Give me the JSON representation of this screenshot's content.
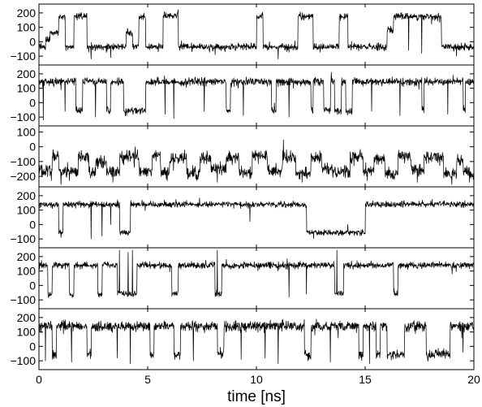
{
  "chart_data": {
    "type": "line",
    "layout": "six vertically stacked panels sharing one x axis, no grid, no legend",
    "xlabel": "time [ns]",
    "xlim": [
      0,
      20
    ],
    "x_ticks": [
      0,
      5,
      10,
      15,
      20
    ],
    "panels": [
      {
        "name": "",
        "ylim": [
          -150,
          250
        ],
        "y_ticks": [
          200,
          100,
          0,
          -100
        ],
        "noise": 16,
        "baseline": -35,
        "segments": [
          [
            0,
            0.3,
            -35
          ],
          [
            0.3,
            0.5,
            20
          ],
          [
            0.5,
            0.9,
            60
          ],
          [
            0.9,
            1.2,
            175
          ],
          [
            1.2,
            1.6,
            -35
          ],
          [
            1.6,
            2.2,
            175
          ],
          [
            2.2,
            4.0,
            -35
          ],
          [
            4.0,
            4.3,
            60
          ],
          [
            4.3,
            4.6,
            -35
          ],
          [
            4.6,
            4.9,
            175
          ],
          [
            4.9,
            5.7,
            -35
          ],
          [
            5.7,
            6.4,
            180
          ],
          [
            6.4,
            10.0,
            -35
          ],
          [
            10.0,
            10.3,
            175
          ],
          [
            10.3,
            11.9,
            -35
          ],
          [
            11.9,
            12.6,
            175
          ],
          [
            12.6,
            13.8,
            -35
          ],
          [
            13.8,
            14.2,
            175
          ],
          [
            14.2,
            16.0,
            -35
          ],
          [
            16.0,
            16.3,
            80
          ],
          [
            16.3,
            18.5,
            175
          ],
          [
            18.5,
            20.0,
            -35
          ]
        ],
        "spikes": [
          [
            2.4,
            -120
          ],
          [
            3.3,
            -110
          ],
          [
            8.1,
            -90
          ],
          [
            11.0,
            -120
          ],
          [
            17.0,
            -60
          ],
          [
            17.6,
            -80
          ],
          [
            19.2,
            -100
          ]
        ]
      },
      {
        "name": "",
        "ylim": [
          -150,
          250
        ],
        "y_ticks": [
          200,
          100,
          0,
          -100
        ],
        "noise": 18,
        "baseline": 145,
        "segments": [
          [
            0,
            1.7,
            145
          ],
          [
            1.7,
            2.0,
            -55
          ],
          [
            2.0,
            3.1,
            145
          ],
          [
            3.1,
            3.3,
            -55
          ],
          [
            3.3,
            3.9,
            145
          ],
          [
            3.9,
            4.9,
            -60
          ],
          [
            4.9,
            8.6,
            145
          ],
          [
            8.6,
            8.8,
            -55
          ],
          [
            8.8,
            10.7,
            145
          ],
          [
            10.7,
            10.9,
            -50
          ],
          [
            10.9,
            12.5,
            145
          ],
          [
            12.5,
            12.6,
            -50
          ],
          [
            12.6,
            13.1,
            145
          ],
          [
            13.1,
            13.4,
            -50
          ],
          [
            13.4,
            13.6,
            145
          ],
          [
            13.6,
            13.9,
            -60
          ],
          [
            13.9,
            14.1,
            145
          ],
          [
            14.1,
            14.4,
            -60
          ],
          [
            14.4,
            17.6,
            145
          ],
          [
            17.6,
            17.7,
            -50
          ],
          [
            17.7,
            19.5,
            145
          ],
          [
            19.5,
            19.6,
            -50
          ],
          [
            19.6,
            20.0,
            145
          ]
        ],
        "spikes": [
          [
            0.2,
            -120
          ],
          [
            1.2,
            -60
          ],
          [
            2.6,
            -100
          ],
          [
            5.8,
            -80
          ],
          [
            6.2,
            -110
          ],
          [
            7.6,
            -60
          ],
          [
            9.4,
            -90
          ],
          [
            11.5,
            -100
          ],
          [
            15.3,
            -60
          ],
          [
            16.6,
            -90
          ],
          [
            18.8,
            -80
          ]
        ]
      },
      {
        "name": "",
        "ylim": [
          -260,
          130
        ],
        "y_ticks": [
          100,
          0,
          -100,
          -200
        ],
        "noise": 28,
        "baseline": -150,
        "segments": [
          [
            0,
            0.6,
            -160
          ],
          [
            0.6,
            0.9,
            -60
          ],
          [
            0.9,
            1.8,
            -170
          ],
          [
            1.8,
            2.3,
            -70
          ],
          [
            2.3,
            2.6,
            -180
          ],
          [
            2.6,
            3.1,
            -110
          ],
          [
            3.1,
            3.7,
            -170
          ],
          [
            3.7,
            4.6,
            -70
          ],
          [
            4.6,
            5.2,
            -160
          ],
          [
            5.2,
            5.6,
            -60
          ],
          [
            5.6,
            6.0,
            -170
          ],
          [
            6.0,
            6.8,
            -80
          ],
          [
            6.8,
            7.4,
            -180
          ],
          [
            7.4,
            7.9,
            -75
          ],
          [
            7.9,
            8.6,
            -150
          ],
          [
            8.6,
            9.2,
            -80
          ],
          [
            9.2,
            9.8,
            -170
          ],
          [
            9.8,
            10.5,
            -60
          ],
          [
            10.5,
            11.2,
            -160
          ],
          [
            11.2,
            11.8,
            -70
          ],
          [
            11.8,
            12.5,
            -180
          ],
          [
            12.5,
            13.0,
            -70
          ],
          [
            13.0,
            13.5,
            -150
          ],
          [
            13.5,
            14.3,
            -170
          ],
          [
            14.3,
            14.9,
            -70
          ],
          [
            14.9,
            15.4,
            -160
          ],
          [
            15.4,
            15.9,
            -80
          ],
          [
            15.9,
            16.5,
            -180
          ],
          [
            16.5,
            17.1,
            -60
          ],
          [
            17.1,
            17.7,
            -160
          ],
          [
            17.7,
            18.6,
            -70
          ],
          [
            18.6,
            19.2,
            -180
          ],
          [
            19.2,
            19.5,
            -90
          ],
          [
            19.5,
            20.0,
            -175
          ]
        ],
        "spikes": [
          [
            1.4,
            -230
          ],
          [
            3.4,
            -240
          ],
          [
            5.9,
            -230
          ],
          [
            8.2,
            -240
          ],
          [
            12.1,
            -240
          ],
          [
            15.1,
            -230
          ],
          [
            17.4,
            -240
          ],
          [
            19.8,
            -240
          ]
        ]
      },
      {
        "name": "",
        "ylim": [
          -150,
          250
        ],
        "y_ticks": [
          200,
          100,
          0,
          -100
        ],
        "noise": 14,
        "baseline": 140,
        "segments": [
          [
            0,
            0.9,
            140
          ],
          [
            0.9,
            1.1,
            -55
          ],
          [
            1.1,
            3.7,
            140
          ],
          [
            3.7,
            4.2,
            -55
          ],
          [
            4.2,
            12.3,
            140
          ],
          [
            12.3,
            15.0,
            -55
          ],
          [
            15.0,
            20.0,
            140
          ]
        ],
        "spikes": [
          [
            2.4,
            -100
          ],
          [
            2.9,
            -80
          ],
          [
            3.3,
            0
          ],
          [
            9.7,
            20
          ],
          [
            14.2,
            0
          ]
        ]
      },
      {
        "name": "",
        "ylim": [
          -150,
          250
        ],
        "y_ticks": [
          200,
          100,
          0,
          -100
        ],
        "noise": 16,
        "baseline": 140,
        "segments": [
          [
            0,
            0.4,
            140
          ],
          [
            0.4,
            0.6,
            -60
          ],
          [
            0.6,
            1.4,
            140
          ],
          [
            1.4,
            1.6,
            -60
          ],
          [
            1.6,
            2.7,
            140
          ],
          [
            2.7,
            2.9,
            -60
          ],
          [
            2.9,
            3.6,
            140
          ],
          [
            3.6,
            4.5,
            -55
          ],
          [
            4.5,
            6.1,
            140
          ],
          [
            6.1,
            6.4,
            -55
          ],
          [
            6.4,
            8.1,
            140
          ],
          [
            8.1,
            8.4,
            -60
          ],
          [
            8.4,
            13.6,
            140
          ],
          [
            13.6,
            14.0,
            -55
          ],
          [
            14.0,
            16.3,
            140
          ],
          [
            16.3,
            16.5,
            -55
          ],
          [
            16.5,
            20.0,
            140
          ]
        ],
        "spikes": [
          [
            3.7,
            250
          ],
          [
            4.1,
            230
          ],
          [
            4.3,
            260
          ],
          [
            8.2,
            250
          ],
          [
            11.5,
            -80
          ],
          [
            12.3,
            -60
          ],
          [
            13.7,
            250
          ],
          [
            19.0,
            80
          ]
        ]
      },
      {
        "name": "",
        "ylim": [
          -150,
          250
        ],
        "y_ticks": [
          200,
          100,
          0,
          -100
        ],
        "noise": 24,
        "baseline": 140,
        "segments": [
          [
            0,
            0.6,
            140
          ],
          [
            0.6,
            0.8,
            -60
          ],
          [
            0.8,
            2.2,
            140
          ],
          [
            2.2,
            2.4,
            -50
          ],
          [
            2.4,
            5.1,
            140
          ],
          [
            5.1,
            5.3,
            -60
          ],
          [
            5.3,
            6.2,
            140
          ],
          [
            6.2,
            6.5,
            -60
          ],
          [
            6.5,
            8.2,
            140
          ],
          [
            8.2,
            8.5,
            -60
          ],
          [
            8.5,
            12.2,
            140
          ],
          [
            12.2,
            12.5,
            -60
          ],
          [
            12.5,
            14.7,
            140
          ],
          [
            14.7,
            14.9,
            -60
          ],
          [
            14.9,
            15.5,
            140
          ],
          [
            15.5,
            15.7,
            -60
          ],
          [
            15.7,
            16.0,
            140
          ],
          [
            16.0,
            16.8,
            -55
          ],
          [
            16.8,
            17.8,
            140
          ],
          [
            17.8,
            18.3,
            -55
          ],
          [
            18.3,
            18.9,
            -50
          ],
          [
            18.9,
            20.0,
            140
          ]
        ],
        "spikes": [
          [
            0.3,
            -100
          ],
          [
            1.5,
            -110
          ],
          [
            3.6,
            -80
          ],
          [
            4.2,
            -120
          ],
          [
            7.1,
            -100
          ],
          [
            9.3,
            -90
          ],
          [
            10.4,
            -80
          ],
          [
            11.0,
            -120
          ],
          [
            13.4,
            -110
          ],
          [
            15.2,
            -120
          ],
          [
            19.5,
            -40
          ]
        ]
      }
    ]
  }
}
